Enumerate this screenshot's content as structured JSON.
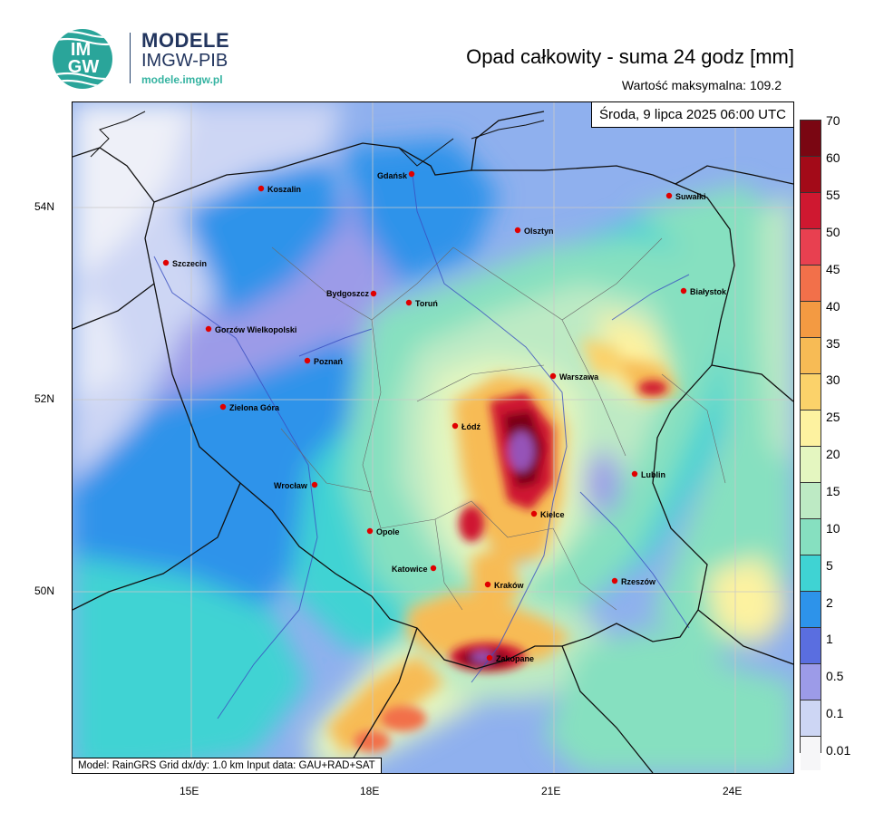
{
  "brand": {
    "logo_text_top": "IM",
    "logo_text_bottom": "GW",
    "name": "MODELE",
    "subtitle": "IMGW-PIB",
    "url": "modele.imgw.pl"
  },
  "map": {
    "title": "Opad całkowity - suma 24 godz [mm]",
    "max_label": "Wartość maksymalna: 109.2",
    "date_label": "Środa, 9 lipca 2025 06:00 UTC",
    "model_info": "Model: RainGRS   Grid dx/dy: 1.0 km   Input data: GAU+RAD+SAT",
    "lon_ticks": [
      "15E",
      "18E",
      "21E",
      "24E"
    ],
    "lat_ticks": [
      "54N",
      "52N",
      "50N"
    ],
    "cities": [
      {
        "name": "Gdańsk"
      },
      {
        "name": "Koszalin"
      },
      {
        "name": "Szczecin"
      },
      {
        "name": "Olsztyn"
      },
      {
        "name": "Suwałki"
      },
      {
        "name": "Białystok"
      },
      {
        "name": "Bydgoszcz"
      },
      {
        "name": "Toruń"
      },
      {
        "name": "Gorzów Wielkopolski"
      },
      {
        "name": "Poznań"
      },
      {
        "name": "Warszawa"
      },
      {
        "name": "Zielona Góra"
      },
      {
        "name": "Łódź"
      },
      {
        "name": "Lublin"
      },
      {
        "name": "Wrocław"
      },
      {
        "name": "Opole"
      },
      {
        "name": "Kielce"
      },
      {
        "name": "Katowice"
      },
      {
        "name": "Kraków"
      },
      {
        "name": "Rzeszów"
      },
      {
        "name": "Zakopane"
      }
    ]
  },
  "legend": {
    "labels": [
      "70",
      "60",
      "55",
      "50",
      "45",
      "40",
      "35",
      "30",
      "25",
      "20",
      "15",
      "10",
      "5",
      "2",
      "1",
      "0.5",
      "0.1",
      "0.01"
    ],
    "colors": [
      "#7a0612",
      "#a30a18",
      "#cf1830",
      "#e84050",
      "#f2704a",
      "#f39a42",
      "#f7bb55",
      "#fbd26a",
      "#fdf2a0",
      "#e4f6c0",
      "#bdeac4",
      "#86e0c0",
      "#3fd3d3",
      "#2d93ea",
      "#5a6ee0",
      "#9c9be8",
      "#cdd6f4",
      "#f6f6f8"
    ]
  }
}
